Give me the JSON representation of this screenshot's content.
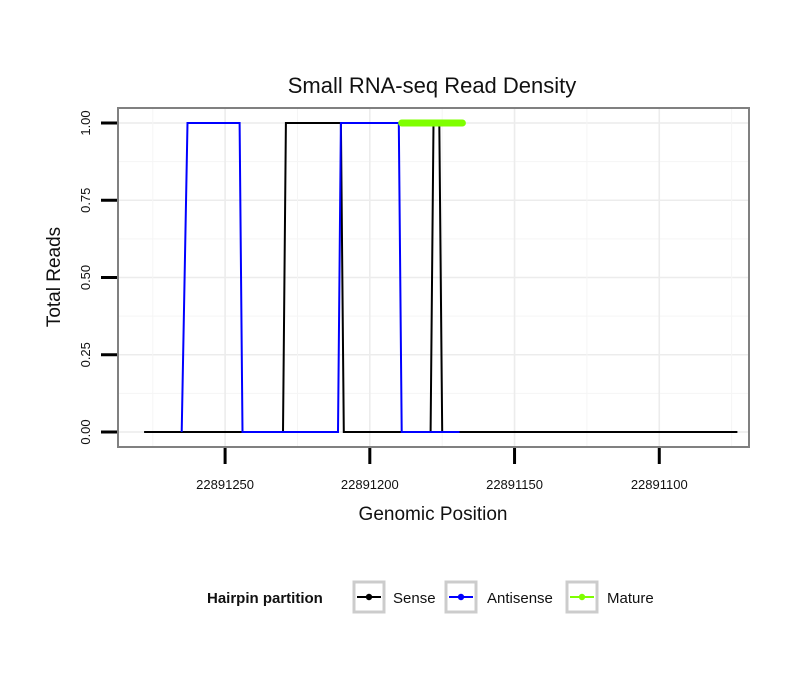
{
  "chart_data": {
    "type": "line",
    "title": "Small RNA-seq Read Density",
    "xlabel": "Genomic Position",
    "ylabel": "Total Reads",
    "xlim": [
      22891287,
      22891069
    ],
    "x_reversed": true,
    "ylim": [
      0,
      1.0
    ],
    "x_ticks": [
      22891250,
      22891200,
      22891150,
      22891100
    ],
    "x_tick_labels": [
      "22891250",
      "22891200",
      "22891150",
      "22891100"
    ],
    "y_ticks": [
      0,
      0.25,
      0.5,
      0.75,
      1.0
    ],
    "y_tick_labels": [
      "0.00",
      "0.25",
      "0.50",
      "0.75",
      "1.00"
    ],
    "grid": true,
    "legend": {
      "title": "Hairpin partition",
      "position": "bottom",
      "entries": [
        {
          "name": "Sense",
          "color": "#000000"
        },
        {
          "name": "Antisense",
          "color": "#0000ff"
        },
        {
          "name": "Mature",
          "color": "#7fff00"
        }
      ]
    },
    "series": [
      {
        "name": "Sense",
        "color": "#000000",
        "x": [
          22891278,
          22891265,
          22891263,
          22891245,
          22891244,
          22891230,
          22891229,
          22891210,
          22891209,
          22891197,
          22891196,
          22891179,
          22891178,
          22891176,
          22891175,
          22891073
        ],
        "y": [
          0,
          0,
          0,
          0,
          0,
          0,
          1,
          1,
          0,
          0,
          0,
          0,
          1,
          1,
          0,
          0
        ]
      },
      {
        "name": "Antisense",
        "color": "#0000ff",
        "x": [
          22891265,
          22891263,
          22891245,
          22891244,
          22891230,
          22891229,
          22891211,
          22891210,
          22891209,
          22891190,
          22891189,
          22891169
        ],
        "y": [
          0,
          1,
          1,
          0,
          0,
          0,
          0,
          1,
          1,
          1,
          0,
          0
        ]
      },
      {
        "name": "Mature",
        "color": "#7fff00",
        "x": [
          22891189,
          22891168
        ],
        "y": [
          1,
          1
        ]
      }
    ]
  }
}
